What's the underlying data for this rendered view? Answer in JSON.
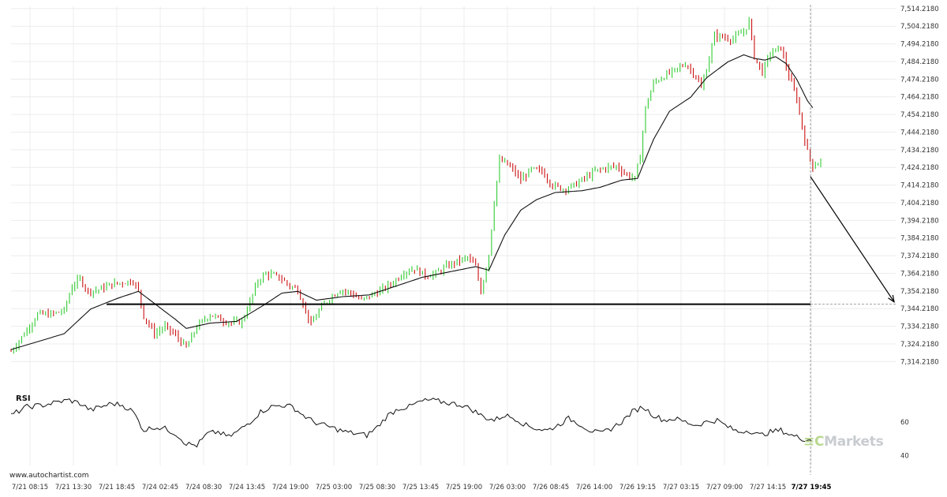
{
  "watermark_text": "www.autochartist.com",
  "brand": {
    "mark": "≡C",
    "name": "Markets"
  },
  "colors": {
    "up": "#33cc33",
    "down": "#cc1111",
    "ma": "#111111",
    "level": "#000000",
    "grid": "#ececec",
    "arrow": "#000000"
  },
  "chart_data": {
    "type": "candlestick",
    "title": "",
    "price_axis": {
      "ticks": [
        "7,314.2180",
        "7,324.2180",
        "7,334.2180",
        "7,344.2180",
        "7,354.2180",
        "7,364.2180",
        "7,374.2180",
        "7,384.2180",
        "7,394.2180",
        "7,404.2180",
        "7,414.2180",
        "7,424.2180",
        "7,434.2180",
        "7,444.2180",
        "7,454.2180",
        "7,464.2180",
        "7,474.2180",
        "7,484.2180",
        "7,494.2180",
        "7,504.2180",
        "7,514.2180"
      ],
      "range": [
        7309.0,
        7515.5
      ]
    },
    "time_axis": {
      "labels": [
        "7/21 08:15",
        "7/21 13:30",
        "7/21 18:45",
        "7/24 02:45",
        "7/24 08:30",
        "7/24 13:45",
        "7/24 19:00",
        "7/25 03:00",
        "7/25 08:30",
        "7/25 13:45",
        "7/25 19:00",
        "7/26 03:00",
        "7/26 08:45",
        "7/26 14:00",
        "7/26 19:15",
        "7/27 03:15",
        "7/27 09:00",
        "7/27 14:15",
        "7/27 19:45"
      ],
      "highlight_label": "7/27 19:45"
    },
    "support_level": 7346.7,
    "forecast": {
      "from": 7419.0,
      "to": 7348.0
    },
    "candle_keypoints": [
      [
        0,
        7320
      ],
      [
        5,
        7330
      ],
      [
        10,
        7341
      ],
      [
        15,
        7341
      ],
      [
        20,
        7343
      ],
      [
        23,
        7357
      ],
      [
        26,
        7361
      ],
      [
        29,
        7354
      ],
      [
        33,
        7355
      ],
      [
        38,
        7358
      ],
      [
        42,
        7359
      ],
      [
        46,
        7360
      ],
      [
        48,
        7354
      ],
      [
        50,
        7340
      ],
      [
        54,
        7330
      ],
      [
        58,
        7334
      ],
      [
        62,
        7329
      ],
      [
        66,
        7322
      ],
      [
        70,
        7334
      ],
      [
        75,
        7341
      ],
      [
        79,
        7338
      ],
      [
        83,
        7336
      ],
      [
        87,
        7337
      ],
      [
        90,
        7348
      ],
      [
        93,
        7360
      ],
      [
        96,
        7364
      ],
      [
        99,
        7363
      ],
      [
        102,
        7361
      ],
      [
        105,
        7357
      ],
      [
        108,
        7355
      ],
      [
        111,
        7343
      ],
      [
        113,
        7335
      ],
      [
        116,
        7343
      ],
      [
        120,
        7350
      ],
      [
        124,
        7355
      ],
      [
        128,
        7353
      ],
      [
        132,
        7349
      ],
      [
        136,
        7352
      ],
      [
        140,
        7355
      ],
      [
        144,
        7359
      ],
      [
        148,
        7365
      ],
      [
        152,
        7367
      ],
      [
        156,
        7363
      ],
      [
        160,
        7364
      ],
      [
        164,
        7368
      ],
      [
        168,
        7371
      ],
      [
        172,
        7373
      ],
      [
        175,
        7368
      ],
      [
        177,
        7354
      ],
      [
        180,
        7375
      ],
      [
        182,
        7405
      ],
      [
        184,
        7428
      ],
      [
        186,
        7427
      ],
      [
        189,
        7423
      ],
      [
        192,
        7417
      ],
      [
        196,
        7423
      ],
      [
        200,
        7422
      ],
      [
        204,
        7414
      ],
      [
        208,
        7412
      ],
      [
        212,
        7414
      ],
      [
        216,
        7418
      ],
      [
        220,
        7422
      ],
      [
        224,
        7424
      ],
      [
        228,
        7425
      ],
      [
        232,
        7420
      ],
      [
        235,
        7418
      ],
      [
        237,
        7431
      ],
      [
        239,
        7458
      ],
      [
        242,
        7472
      ],
      [
        246,
        7476
      ],
      [
        250,
        7479
      ],
      [
        254,
        7483
      ],
      [
        258,
        7476
      ],
      [
        260,
        7469
      ],
      [
        262,
        7480
      ],
      [
        265,
        7499
      ],
      [
        268,
        7498
      ],
      [
        272,
        7497
      ],
      [
        276,
        7501
      ],
      [
        278,
        7507
      ],
      [
        280,
        7487
      ],
      [
        283,
        7478
      ],
      [
        286,
        7489
      ],
      [
        290,
        7492
      ],
      [
        293,
        7476
      ],
      [
        296,
        7463
      ],
      [
        298,
        7447
      ],
      [
        300,
        7433
      ],
      [
        302,
        7425
      ],
      [
        305,
        7428
      ]
    ],
    "candle_count": 306,
    "ma_keypoints": [
      [
        0,
        7321
      ],
      [
        20,
        7330
      ],
      [
        30,
        7344
      ],
      [
        40,
        7350
      ],
      [
        48,
        7354
      ],
      [
        55,
        7346
      ],
      [
        62,
        7338
      ],
      [
        66,
        7333
      ],
      [
        75,
        7336
      ],
      [
        85,
        7337
      ],
      [
        95,
        7346
      ],
      [
        102,
        7353
      ],
      [
        108,
        7354
      ],
      [
        115,
        7349
      ],
      [
        125,
        7351
      ],
      [
        135,
        7352
      ],
      [
        145,
        7357
      ],
      [
        155,
        7362
      ],
      [
        165,
        7365
      ],
      [
        175,
        7368
      ],
      [
        180,
        7366
      ],
      [
        186,
        7386
      ],
      [
        192,
        7400
      ],
      [
        198,
        7406
      ],
      [
        205,
        7410
      ],
      [
        215,
        7411
      ],
      [
        222,
        7413
      ],
      [
        230,
        7417
      ],
      [
        236,
        7418
      ],
      [
        242,
        7440
      ],
      [
        248,
        7456
      ],
      [
        256,
        7464
      ],
      [
        262,
        7475
      ],
      [
        270,
        7484
      ],
      [
        276,
        7488
      ],
      [
        280,
        7486
      ],
      [
        284,
        7485
      ],
      [
        288,
        7487
      ],
      [
        292,
        7483
      ],
      [
        296,
        7474
      ],
      [
        300,
        7462
      ],
      [
        302,
        7458
      ]
    ],
    "rsi": {
      "label": "RSI",
      "ticks": [
        "60",
        "40"
      ],
      "range": [
        35,
        82
      ],
      "keypoints": [
        [
          0,
          64
        ],
        [
          6,
          69
        ],
        [
          12,
          70
        ],
        [
          18,
          72
        ],
        [
          22,
          73
        ],
        [
          26,
          71
        ],
        [
          30,
          67
        ],
        [
          34,
          69
        ],
        [
          38,
          71
        ],
        [
          42,
          70
        ],
        [
          46,
          66
        ],
        [
          50,
          55
        ],
        [
          54,
          57
        ],
        [
          58,
          56
        ],
        [
          62,
          53
        ],
        [
          66,
          47
        ],
        [
          70,
          46
        ],
        [
          74,
          53
        ],
        [
          78,
          54
        ],
        [
          82,
          51
        ],
        [
          86,
          55
        ],
        [
          90,
          60
        ],
        [
          94,
          66
        ],
        [
          98,
          69
        ],
        [
          102,
          70
        ],
        [
          106,
          69
        ],
        [
          110,
          64
        ],
        [
          114,
          60
        ],
        [
          118,
          58
        ],
        [
          122,
          56
        ],
        [
          126,
          54
        ],
        [
          130,
          53
        ],
        [
          134,
          52
        ],
        [
          138,
          57
        ],
        [
          142,
          64
        ],
        [
          146,
          68
        ],
        [
          150,
          69
        ],
        [
          154,
          72
        ],
        [
          158,
          73
        ],
        [
          162,
          72
        ],
        [
          166,
          71
        ],
        [
          170,
          70
        ],
        [
          174,
          67
        ],
        [
          178,
          63
        ],
        [
          182,
          61
        ],
        [
          186,
          64
        ],
        [
          190,
          62
        ],
        [
          194,
          58
        ],
        [
          198,
          56
        ],
        [
          202,
          55
        ],
        [
          206,
          58
        ],
        [
          210,
          62
        ],
        [
          214,
          59
        ],
        [
          218,
          55
        ],
        [
          222,
          53
        ],
        [
          226,
          56
        ],
        [
          230,
          60
        ],
        [
          234,
          66
        ],
        [
          238,
          69
        ],
        [
          242,
          64
        ],
        [
          246,
          61
        ],
        [
          250,
          62
        ],
        [
          254,
          60
        ],
        [
          258,
          58
        ],
        [
          262,
          60
        ],
        [
          266,
          61
        ],
        [
          270,
          57
        ],
        [
          274,
          54
        ],
        [
          278,
          55
        ],
        [
          282,
          52
        ],
        [
          286,
          54
        ],
        [
          290,
          55
        ],
        [
          294,
          52
        ],
        [
          298,
          50
        ],
        [
          302,
          49
        ]
      ]
    }
  }
}
